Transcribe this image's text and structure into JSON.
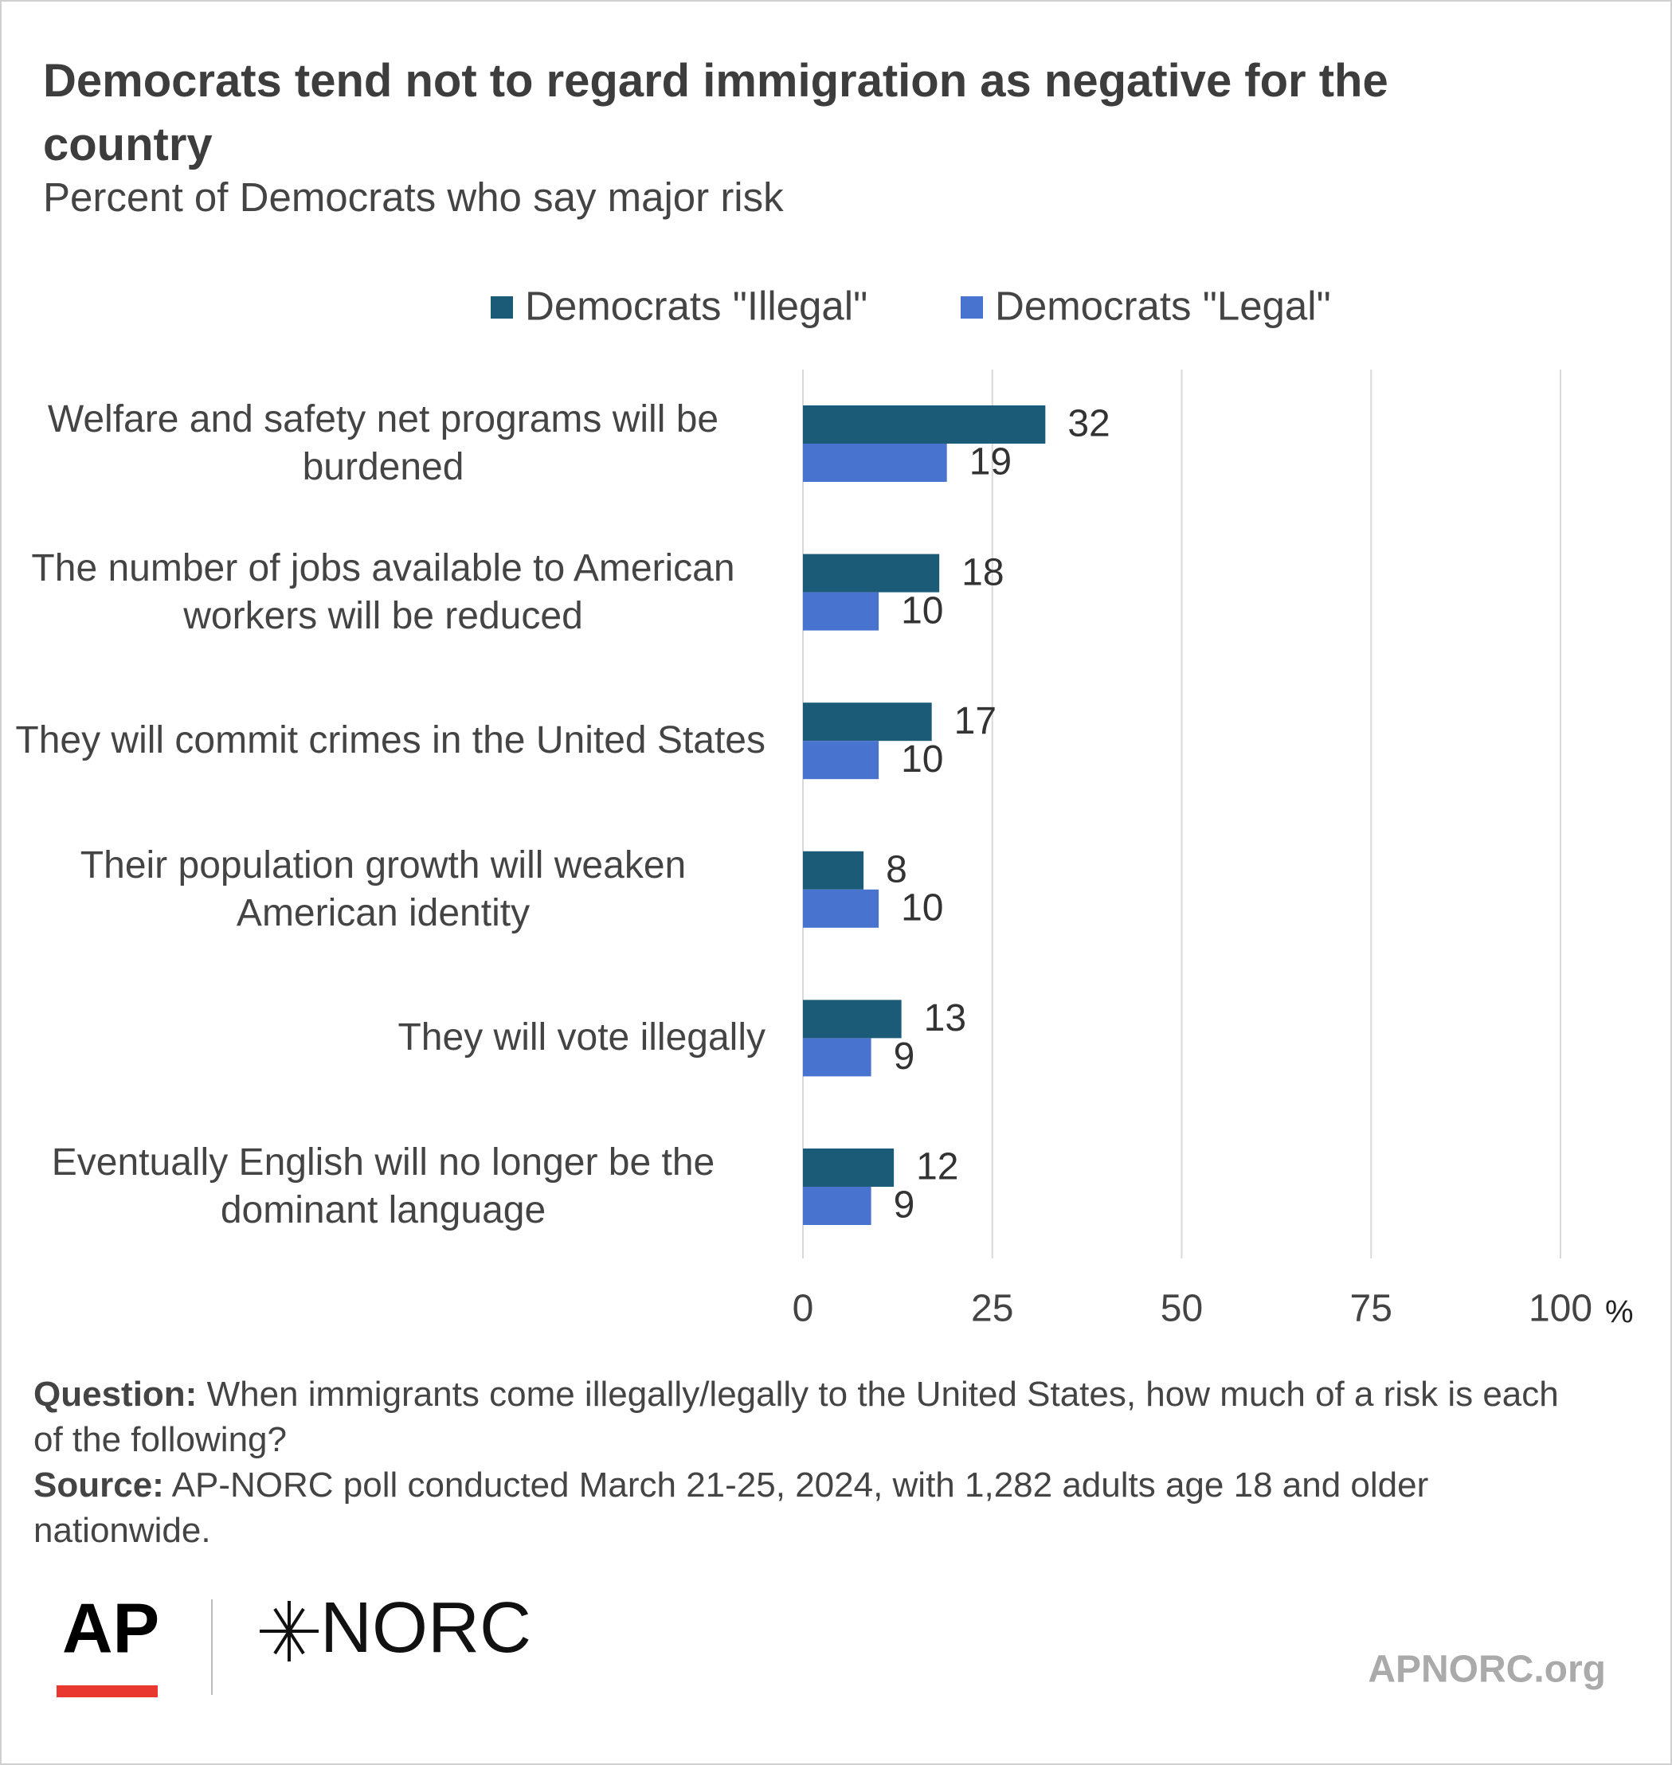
{
  "chart_data": {
    "type": "bar",
    "orientation": "horizontal",
    "title": "Democrats tend not to regard immigration as negative for the country",
    "subtitle": "Percent of Democrats who say major risk",
    "categories": [
      "Welfare and safety net programs will be burdened",
      "The number of jobs available to American workers will be reduced",
      "They will commit crimes in the United States",
      "Their population growth will weaken American identity",
      "They will vote illegally",
      "Eventually English will no longer be the dominant language"
    ],
    "series": [
      {
        "name": "Democrats \"Illegal\"",
        "color": "#1b5b78",
        "values": [
          32,
          18,
          17,
          8,
          13,
          12
        ]
      },
      {
        "name": "Democrats \"Legal\"",
        "color": "#4874cf",
        "values": [
          19,
          10,
          10,
          10,
          9,
          9
        ]
      }
    ],
    "xlim": [
      0,
      100
    ],
    "xticks": [
      0,
      25,
      50,
      75,
      100
    ],
    "x_unit": "%",
    "grid": true,
    "legend": "top"
  },
  "footer": {
    "question_label": "Question:",
    "question": "When immigrants come illegally/legally to the United States, how much of a risk is each of the following?",
    "source_label": "Source:",
    "source": "AP-NORC poll conducted March 21-25, 2024, with 1,282 adults age 18 and older nationwide."
  },
  "logos": {
    "ap": "AP",
    "norc": "NORC",
    "site": "APNORC.org"
  }
}
